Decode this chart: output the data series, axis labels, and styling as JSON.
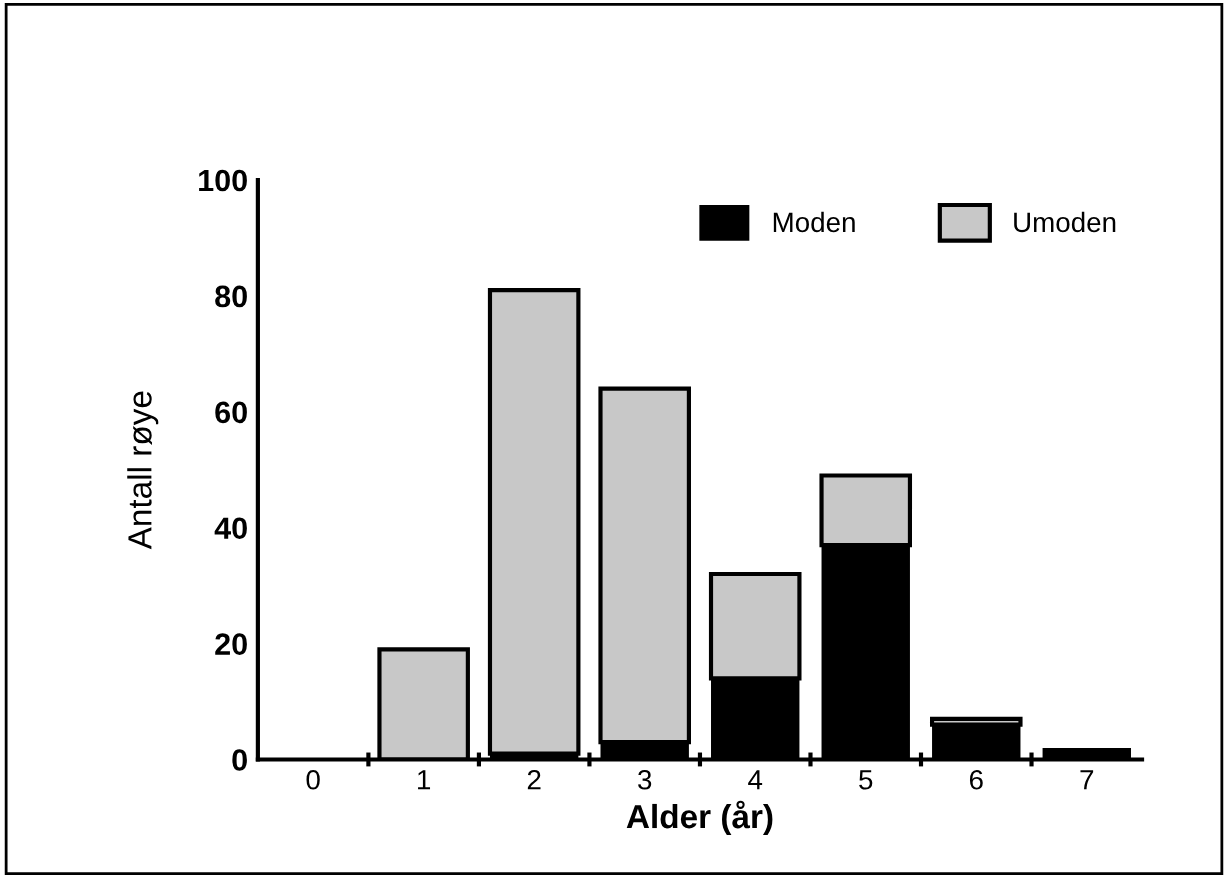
{
  "chart_data": {
    "type": "bar",
    "stacked": true,
    "xlabel": "Alder (år)",
    "ylabel": "Antall røye",
    "categories": [
      "0",
      "1",
      "2",
      "3",
      "4",
      "5",
      "6",
      "7"
    ],
    "series": [
      {
        "name": "Moden",
        "color": "#000000",
        "values": [
          0,
          0,
          1,
          3,
          14,
          37,
          6,
          2
        ]
      },
      {
        "name": "Umoden",
        "color": "#c8c8c8",
        "values": [
          0,
          19,
          80,
          61,
          18,
          12,
          1,
          0
        ]
      }
    ],
    "ylim": [
      0,
      100
    ],
    "yticks": [
      0,
      20,
      40,
      60,
      80,
      100
    ],
    "grid": false,
    "legend": "top right"
  }
}
